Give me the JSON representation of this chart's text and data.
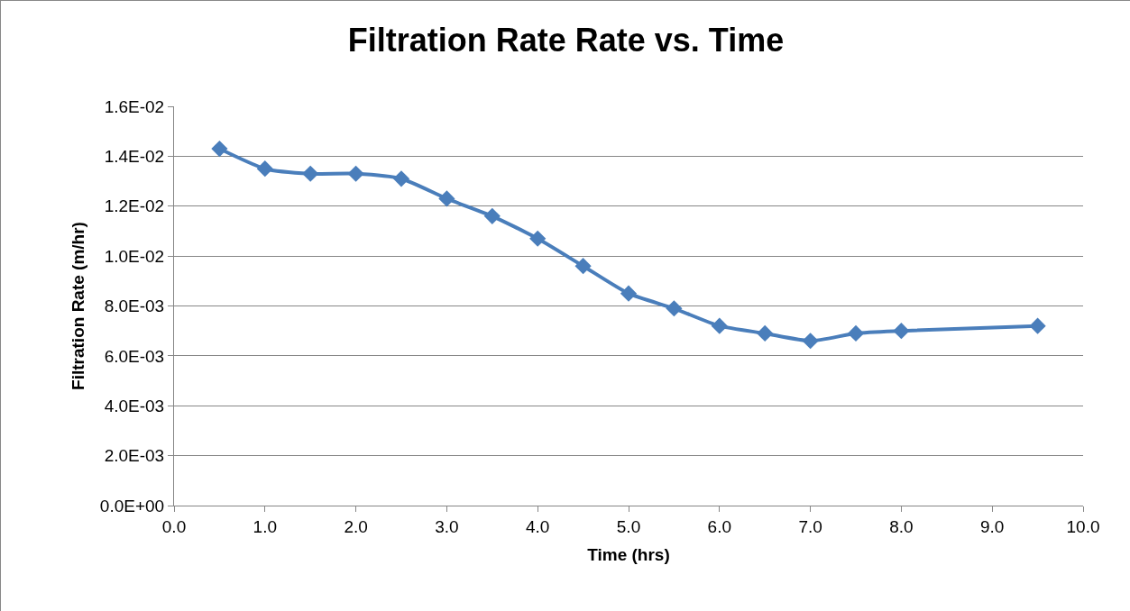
{
  "chart_data": {
    "type": "line",
    "title": "Filtration Rate Rate vs. Time",
    "xlabel": "Time (hrs)",
    "ylabel": "Filtration Rate (m/hr)",
    "x": [
      0.5,
      1.0,
      1.5,
      2.0,
      2.5,
      3.0,
      3.5,
      4.0,
      4.5,
      5.0,
      5.5,
      6.0,
      6.5,
      7.0,
      7.5,
      8.0,
      9.5
    ],
    "series": [
      {
        "color": "#4a7ebb",
        "values": [
          0.0143,
          0.0135,
          0.0133,
          0.0133,
          0.0131,
          0.0123,
          0.0116,
          0.0107,
          0.0096,
          0.0085,
          0.0079,
          0.0072,
          0.0069,
          0.0066,
          0.0069,
          0.007,
          0.0072
        ]
      }
    ],
    "xlim": [
      0,
      10
    ],
    "xticks": [
      {
        "value": 0,
        "label": "0.0"
      },
      {
        "value": 1,
        "label": "1.0"
      },
      {
        "value": 2,
        "label": "2.0"
      },
      {
        "value": 3,
        "label": "3.0"
      },
      {
        "value": 4,
        "label": "4.0"
      },
      {
        "value": 5,
        "label": "5.0"
      },
      {
        "value": 6,
        "label": "6.0"
      },
      {
        "value": 7,
        "label": "7.0"
      },
      {
        "value": 8,
        "label": "8.0"
      },
      {
        "value": 9,
        "label": "9.0"
      },
      {
        "value": 10,
        "label": "10.0"
      }
    ],
    "ylim": [
      0,
      0.016
    ],
    "yticks": [
      {
        "value": 0,
        "label": "0.0E+00"
      },
      {
        "value": 0.002,
        "label": "2.0E-03"
      },
      {
        "value": 0.004,
        "label": "4.0E-03"
      },
      {
        "value": 0.006,
        "label": "6.0E-03"
      },
      {
        "value": 0.008,
        "label": "8.0E-03"
      },
      {
        "value": 0.01,
        "label": "1.0E-02"
      },
      {
        "value": 0.012,
        "label": "1.2E-02"
      },
      {
        "value": 0.014,
        "label": "1.4E-02"
      },
      {
        "value": 0.016,
        "label": "1.6E-02"
      }
    ],
    "grid": "y",
    "marker": "diamond",
    "line_style": "solid"
  }
}
